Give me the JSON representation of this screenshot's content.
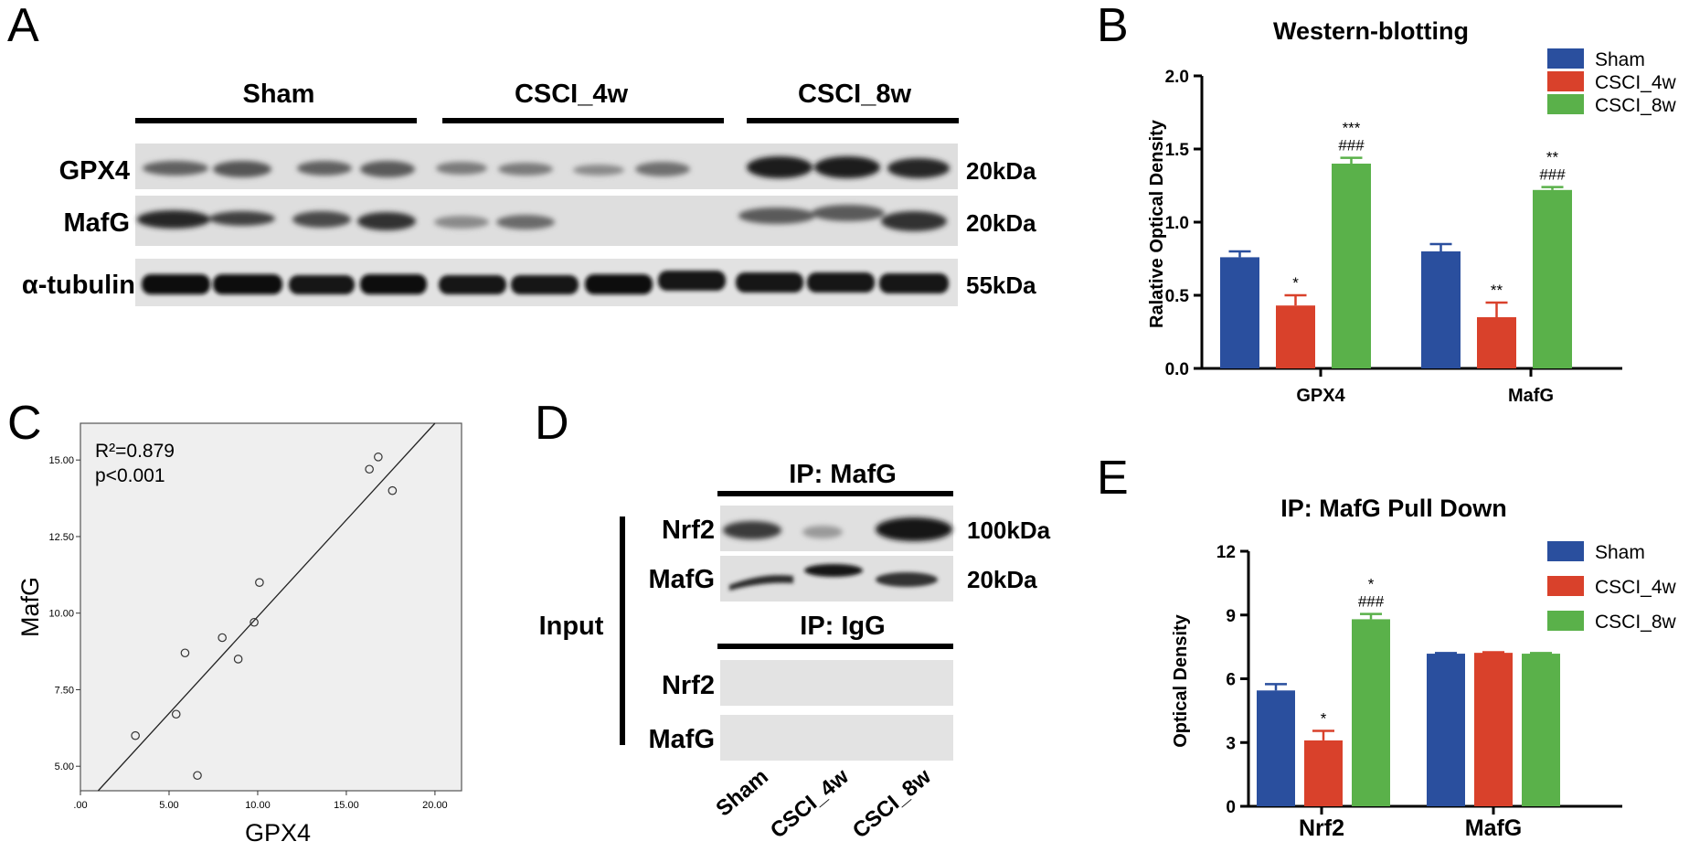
{
  "panels": {
    "A": {
      "letter": "A",
      "groups": [
        "Sham",
        "CSCI_4w",
        "CSCI_8w"
      ],
      "rows": [
        {
          "label": "GPX4",
          "kda": "20kDa"
        },
        {
          "label": "MafG",
          "kda": "20kDa"
        },
        {
          "label": "α-tubulin",
          "kda": "55kDa"
        }
      ]
    },
    "B": {
      "letter": "B"
    },
    "C": {
      "letter": "C"
    },
    "D": {
      "letter": "D",
      "ip_mafg_label": "IP: MafG",
      "ip_igg_label": "IP: IgG",
      "input_label": "Input",
      "rows_top": [
        {
          "label": "Nrf2",
          "kda": "100kDa"
        },
        {
          "label": "MafG",
          "kda": "20kDa"
        }
      ],
      "rows_bottom": [
        {
          "label": "Nrf2"
        },
        {
          "label": "MafG"
        }
      ],
      "lanes": [
        "Sham",
        "CSCI_4w",
        "CSCI_8w"
      ]
    },
    "E": {
      "letter": "E"
    }
  },
  "colors": {
    "sham": "#2a4f9e",
    "csci4": "#d9412b",
    "csci8": "#5ab14a"
  },
  "chart_data": [
    {
      "id": "B",
      "type": "bar",
      "title": "Western-blotting",
      "ylabel": "Ralative Optical Density",
      "xlabel": "",
      "ylim": [
        0,
        2.0
      ],
      "yticks": [
        0.0,
        0.5,
        1.0,
        1.5,
        2.0
      ],
      "ytick_labels": [
        "0.0",
        "0.5",
        "1.0",
        "1.5",
        "2.0"
      ],
      "categories": [
        "GPX4",
        "MafG"
      ],
      "series": [
        {
          "name": "Sham",
          "values": [
            0.76,
            0.8
          ],
          "errors": [
            0.04,
            0.05
          ],
          "annotations": [
            "",
            ""
          ]
        },
        {
          "name": "CSCI_4w",
          "values": [
            0.43,
            0.35
          ],
          "errors": [
            0.07,
            0.1
          ],
          "annotations": [
            "*",
            "**"
          ]
        },
        {
          "name": "CSCI_8w",
          "values": [
            1.4,
            1.22
          ],
          "errors": [
            0.04,
            0.02
          ],
          "annotations": [
            "***\n###",
            "**\n###"
          ]
        }
      ],
      "legend_position": "top-right",
      "grid": false
    },
    {
      "id": "C",
      "type": "scatter",
      "title": "",
      "xlabel": "GPX4",
      "ylabel": "MafG",
      "xlim": [
        0,
        21.5
      ],
      "ylim": [
        4.2,
        16.2
      ],
      "xticks": [
        0,
        5,
        10,
        15,
        20
      ],
      "xtick_labels": [
        ".00",
        "5.00",
        "10.00",
        "15.00",
        "20.00"
      ],
      "yticks": [
        5,
        7.5,
        10,
        12.5,
        15
      ],
      "ytick_labels": [
        "5.00",
        "7.50",
        "10.00",
        "12.50",
        "15.00"
      ],
      "annotation_r2": "R²=0.879",
      "annotation_p": "p<0.001",
      "points": [
        {
          "x": 3.1,
          "y": 6.0
        },
        {
          "x": 5.4,
          "y": 6.7
        },
        {
          "x": 5.9,
          "y": 8.7
        },
        {
          "x": 6.6,
          "y": 4.7
        },
        {
          "x": 8.0,
          "y": 9.2
        },
        {
          "x": 8.9,
          "y": 8.5
        },
        {
          "x": 9.8,
          "y": 9.7
        },
        {
          "x": 10.1,
          "y": 11.0
        },
        {
          "x": 16.3,
          "y": 14.7
        },
        {
          "x": 16.8,
          "y": 15.1
        },
        {
          "x": 17.6,
          "y": 14.0
        }
      ],
      "fit_line": [
        {
          "x": 1.0,
          "y": 4.2
        },
        {
          "x": 20.0,
          "y": 16.2
        }
      ],
      "grid": false
    },
    {
      "id": "E",
      "type": "bar",
      "title": "IP: MafG Pull Down",
      "ylabel": "Optical Density",
      "xlabel": "",
      "ylim": [
        0,
        12
      ],
      "yticks": [
        0,
        3,
        6,
        9,
        12
      ],
      "ytick_labels": [
        "0",
        "3",
        "6",
        "9",
        "12"
      ],
      "categories": [
        "Nrf2",
        "MafG"
      ],
      "series": [
        {
          "name": "Sham",
          "values": [
            5.45,
            7.18
          ],
          "errors": [
            0.3,
            0.03
          ],
          "annotations": [
            "",
            ""
          ]
        },
        {
          "name": "CSCI_4w",
          "values": [
            3.1,
            7.22
          ],
          "errors": [
            0.45,
            0.03
          ],
          "annotations": [
            "*",
            ""
          ]
        },
        {
          "name": "CSCI_8w",
          "values": [
            8.8,
            7.18
          ],
          "errors": [
            0.25,
            0.03
          ],
          "annotations": [
            "*\n###",
            ""
          ]
        }
      ],
      "legend_position": "top-right",
      "grid": false
    }
  ]
}
